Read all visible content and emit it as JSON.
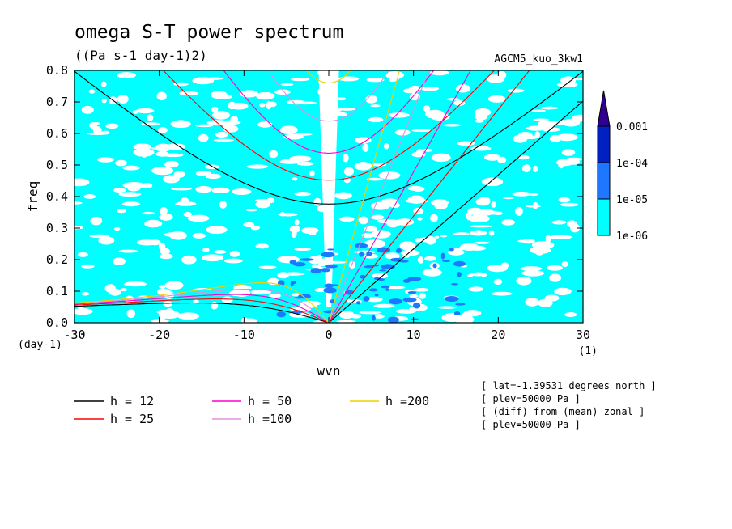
{
  "chart_data": {
    "type": "heatmap",
    "title": "omega S-T power spectrum",
    "subtitle": "((Pa s-1 day-1)2)",
    "run_label": "AGCM5_kuo_3kw1",
    "xlabel": "wvn",
    "ylabel": "freq",
    "x_unit": "(1)",
    "y_unit": "(day-1)",
    "xlim": [
      -30,
      30
    ],
    "ylim": [
      0,
      0.8
    ],
    "x_ticks": [
      -30,
      -20,
      -10,
      0,
      10,
      20,
      30
    ],
    "x_tick_labels": [
      "-30",
      "-20",
      "-10",
      "0",
      "10",
      "20",
      "30"
    ],
    "y_ticks": [
      0.0,
      0.1,
      0.2,
      0.3,
      0.4,
      0.5,
      0.6,
      0.7,
      0.8
    ],
    "y_tick_labels": [
      "0.0",
      "0.1",
      "0.2",
      "0.3",
      "0.4",
      "0.5",
      "0.6",
      "0.7",
      "0.8"
    ],
    "color_levels": [
      1e-06,
      1e-05,
      0.0001,
      0.001
    ],
    "colorbar_labels": [
      "1e-06",
      "1e-05",
      "1e-04",
      "0.001"
    ],
    "colorbar_colors": [
      "#00ffff",
      "#1e78ff",
      "#0020c0",
      "#300090"
    ],
    "fill_colors": {
      "level1": "#00ffff",
      "level2": "#1e78ff"
    },
    "dispersion_curves": [
      {
        "label": "h = 12",
        "h": 12,
        "color": "#000000"
      },
      {
        "label": "h = 25",
        "h": 25,
        "color": "#ff0000"
      },
      {
        "label": "h = 50",
        "h": 50,
        "color": "#ff00cc"
      },
      {
        "label": "h =100",
        "h": 100,
        "color": "#e090e0"
      },
      {
        "label": "h =200",
        "h": 200,
        "color": "#f0d000"
      }
    ],
    "annotations": [
      "[ lat=-1.39531 degrees_north ]",
      "[ plev=50000 Pa ]",
      "[ (diff) from (mean) zonal ]",
      "[ plev=50000 Pa ]"
    ]
  }
}
